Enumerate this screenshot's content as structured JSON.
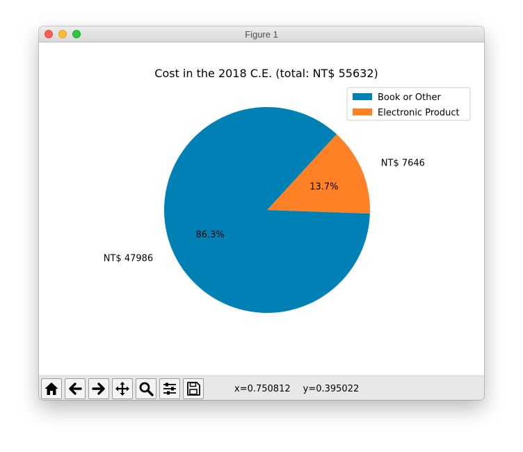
{
  "window": {
    "title": "Figure 1"
  },
  "toolbar": {
    "buttons": [
      {
        "name": "home-icon",
        "tooltip": "Home"
      },
      {
        "name": "back-icon",
        "tooltip": "Back"
      },
      {
        "name": "forward-icon",
        "tooltip": "Forward"
      },
      {
        "name": "pan-icon",
        "tooltip": "Pan"
      },
      {
        "name": "zoom-icon",
        "tooltip": "Zoom"
      },
      {
        "name": "configure-subplots-icon",
        "tooltip": "Subplots"
      },
      {
        "name": "save-icon",
        "tooltip": "Save"
      }
    ],
    "coords": {
      "x": "x=0.750812",
      "y": "y=0.395022"
    }
  },
  "chart_data": {
    "type": "pie",
    "title": "Cost in the 2018 C.E.  (total: NT$ 55632)",
    "labels": [
      "Book or Other",
      "Electronic Product"
    ],
    "values": [
      47986,
      7646
    ],
    "slice_labels": [
      "NT$ 47986",
      "NT$ 7646"
    ],
    "autopct": [
      "86.3%",
      "13.7%"
    ],
    "colors": [
      "#0081b6",
      "#ff8025"
    ],
    "start_angle_deg": -2,
    "legend_position": "top-right"
  }
}
